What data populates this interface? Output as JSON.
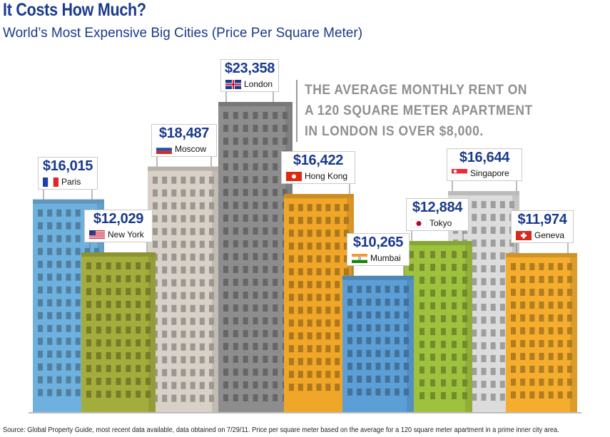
{
  "header": {
    "title": "It Costs How Much?",
    "subtitle": "World’s Most Expensive Big Cities (Price Per Square Meter)"
  },
  "note": {
    "lines": [
      "THE AVERAGE MONTHLY RENT ON",
      "A 120 SQUARE METER APARTMENT",
      "IN LONDON IS OVER $8,000."
    ]
  },
  "footer": {
    "source": "Source: Global Property Guide, most recent data available, data obtained on 7/29/11. Price per square meter based on the average for a 120 square meter apartment in a prime inner city area."
  },
  "chart_data": {
    "type": "bar",
    "categories": [
      "Paris",
      "New York",
      "Moscow",
      "London",
      "Hong Kong",
      "Mumbai",
      "Tokyo",
      "Singapore",
      "Geneva"
    ],
    "values": [
      16015,
      12029,
      18487,
      23358,
      16422,
      10265,
      12884,
      16644,
      11974
    ],
    "price_labels": [
      "$16,015",
      "$12,029",
      "$18,487",
      "$23,358",
      "$16,422",
      "$10,265",
      "$12,884",
      "$16,644",
      "$11,974"
    ],
    "flags": [
      "france-flag-icon",
      "usa-flag-icon",
      "russia-flag-icon",
      "uk-flag-icon",
      "hong-kong-flag-icon",
      "india-flag-icon",
      "japan-flag-icon",
      "singapore-flag-icon",
      "switzerland-flag-icon"
    ],
    "colors": [
      "#6fb1de",
      "#a3ad3c",
      "#d8d1c8",
      "#8d8d8d",
      "#f0a628",
      "#5c9fd6",
      "#9fc23e",
      "#dcdcdc",
      "#f5ad2e"
    ],
    "title": "It Costs How Much?",
    "subtitle": "World’s Most Expensive Big Cities (Price Per Square Meter)"
  }
}
